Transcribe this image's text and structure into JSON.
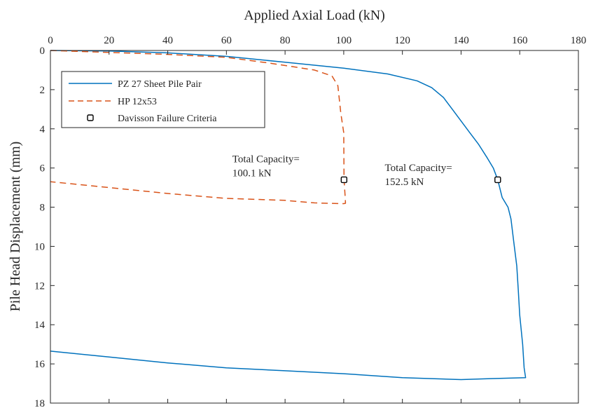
{
  "chart_data": {
    "type": "line",
    "xlabel": "Applied Axial Load (kN)",
    "ylabel": "Pile Head Displacement (mm)",
    "x_axis_position": "top",
    "y_axis_reversed": true,
    "xlim": [
      0,
      180
    ],
    "ylim": [
      0,
      18
    ],
    "xticks": [
      0,
      20,
      40,
      60,
      80,
      100,
      120,
      140,
      160,
      180
    ],
    "yticks": [
      0,
      2,
      4,
      6,
      8,
      10,
      12,
      14,
      16,
      18
    ],
    "grid": false,
    "legend_position": "top-left",
    "series": [
      {
        "name": "PZ 27 Sheet Pile Pair",
        "color": "#0072BD",
        "style": "solid",
        "points": [
          [
            0,
            0
          ],
          [
            20,
            0.03
          ],
          [
            40,
            0.12
          ],
          [
            60,
            0.3
          ],
          [
            80,
            0.6
          ],
          [
            100,
            0.9
          ],
          [
            115,
            1.2
          ],
          [
            125,
            1.55
          ],
          [
            130,
            1.9
          ],
          [
            134,
            2.4
          ],
          [
            137,
            3.0
          ],
          [
            140,
            3.6
          ],
          [
            143,
            4.2
          ],
          [
            146,
            4.8
          ],
          [
            149,
            5.5
          ],
          [
            151,
            6.0
          ],
          [
            152.5,
            6.6
          ],
          [
            154,
            7.5
          ],
          [
            156,
            8.0
          ],
          [
            157,
            8.6
          ],
          [
            158,
            9.8
          ],
          [
            159,
            11.0
          ],
          [
            159.5,
            12.2
          ],
          [
            160,
            13.5
          ],
          [
            161,
            15.0
          ],
          [
            161.5,
            16.2
          ],
          [
            162,
            16.7
          ],
          [
            150,
            16.75
          ],
          [
            140,
            16.8
          ],
          [
            120,
            16.7
          ],
          [
            100,
            16.5
          ],
          [
            80,
            16.35
          ],
          [
            60,
            16.2
          ],
          [
            40,
            15.95
          ],
          [
            20,
            15.65
          ],
          [
            0,
            15.35
          ]
        ]
      },
      {
        "name": "HP 12x53",
        "color": "#D95319",
        "style": "dashed",
        "points": [
          [
            0,
            0
          ],
          [
            20,
            0.1
          ],
          [
            40,
            0.2
          ],
          [
            60,
            0.35
          ],
          [
            75,
            0.65
          ],
          [
            90,
            1.0
          ],
          [
            96,
            1.3
          ],
          [
            98,
            1.8
          ],
          [
            98.5,
            2.5
          ],
          [
            99,
            3.2
          ],
          [
            100,
            4.2
          ],
          [
            100.1,
            6.6
          ],
          [
            100.5,
            7.5
          ],
          [
            100.6,
            7.8
          ],
          [
            100,
            7.82
          ],
          [
            95,
            7.8
          ],
          [
            90,
            7.78
          ],
          [
            85,
            7.72
          ],
          [
            80,
            7.65
          ],
          [
            60,
            7.55
          ],
          [
            40,
            7.3
          ],
          [
            20,
            7.0
          ],
          [
            10,
            6.85
          ],
          [
            0,
            6.7
          ]
        ]
      },
      {
        "name": "Davisson Failure Criteria",
        "color": "#000000",
        "style": "marker-square-open",
        "points": [
          [
            100.1,
            6.6
          ],
          [
            152.5,
            6.6
          ]
        ]
      }
    ],
    "annotations": [
      {
        "lines": [
          "Total Capacity=",
          "100.1 kN"
        ],
        "x": 62,
        "y": 5.7
      },
      {
        "lines": [
          "Total Capacity=",
          "152.5 kN"
        ],
        "x": 114,
        "y": 6.15
      }
    ]
  }
}
